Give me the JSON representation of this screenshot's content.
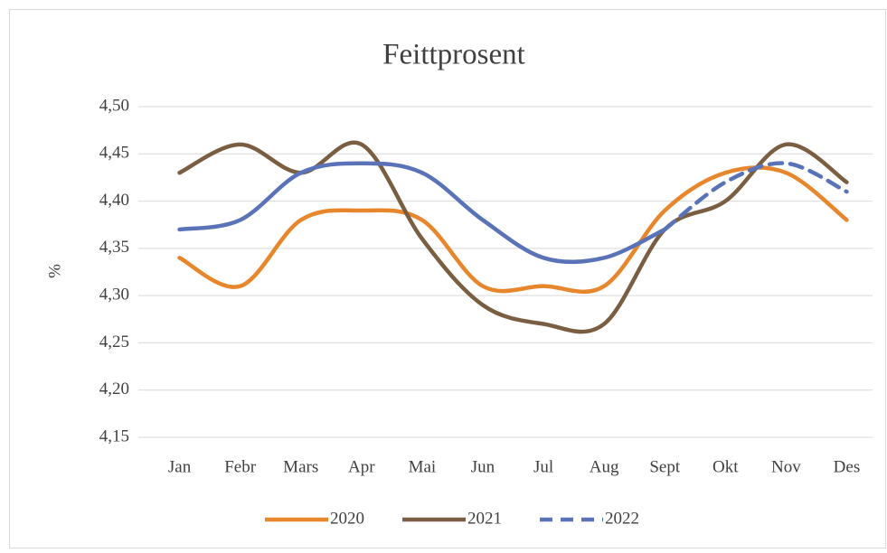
{
  "chart_data": {
    "type": "line",
    "title": "Feittprosent",
    "y_label": "%",
    "categories": [
      "Jan",
      "Febr",
      "Mars",
      "Apr",
      "Mai",
      "Jun",
      "Jul",
      "Aug",
      "Sept",
      "Okt",
      "Nov",
      "Des"
    ],
    "series": [
      {
        "name": "2020",
        "color": "#e8862c",
        "values": [
          4.34,
          4.31,
          4.38,
          4.39,
          4.38,
          4.31,
          4.31,
          4.31,
          4.39,
          4.43,
          4.43,
          4.38
        ]
      },
      {
        "name": "2021",
        "color": "#7a5e42",
        "values": [
          4.43,
          4.46,
          4.43,
          4.46,
          4.36,
          4.29,
          4.27,
          4.27,
          4.37,
          4.4,
          4.46,
          4.42
        ]
      },
      {
        "name": "2022",
        "color": "#5a73b8",
        "values": [
          4.37,
          4.38,
          4.43,
          4.44,
          4.43,
          4.38,
          4.34,
          4.34,
          4.37,
          4.42,
          4.44,
          4.41
        ],
        "dashed_from": 8,
        "legend_dashed": true
      }
    ],
    "ylim": [
      4.15,
      4.5
    ],
    "yticks": [
      {
        "value": 4.15,
        "label": "4,15"
      },
      {
        "value": 4.2,
        "label": "4,20"
      },
      {
        "value": 4.25,
        "label": "4,25"
      },
      {
        "value": 4.3,
        "label": "4,30"
      },
      {
        "value": 4.35,
        "label": "4,35"
      },
      {
        "value": 4.4,
        "label": "4,40"
      },
      {
        "value": 4.45,
        "label": "4,45"
      },
      {
        "value": 4.5,
        "label": "4,50"
      }
    ],
    "grid": true,
    "smooth": true,
    "legend": "bottom"
  }
}
